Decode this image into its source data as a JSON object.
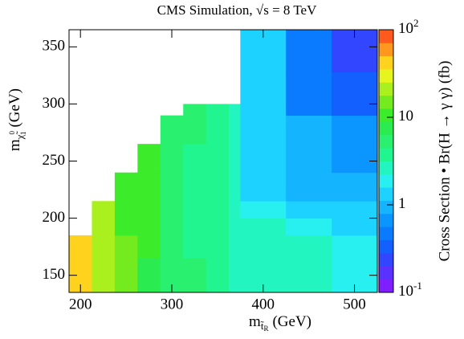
{
  "chart_data": {
    "type": "heatmap",
    "title": "CMS Simulation, √s = 8 TeV",
    "x_label": {
      "main": "m",
      "sub": "t̃",
      "subsub": "R",
      "tail": "(GeV)"
    },
    "y_label": {
      "main": "m",
      "sub": "χ̃",
      "sup": "0",
      "subsub": "1",
      "tail": "(GeV)"
    },
    "z_label": "Cross Section • Br(H → γ γ) (fb)",
    "x_edges": [
      187.5,
      212.5,
      237.5,
      262.5,
      287.5,
      312.5,
      337.5,
      362.5,
      375,
      425,
      475,
      525
    ],
    "y_edges": [
      135,
      165,
      185,
      200,
      215,
      240,
      265,
      290,
      300,
      328,
      365
    ],
    "values": [
      [
        40,
        40,
        null,
        null,
        null,
        null,
        null,
        null,
        null,
        null
      ],
      [
        20,
        20,
        20,
        20,
        null,
        null,
        null,
        null,
        null,
        null
      ],
      [
        15,
        14,
        12,
        12,
        12,
        null,
        null,
        null,
        null,
        null
      ],
      [
        8,
        9,
        9,
        9,
        9,
        9,
        null,
        null,
        null,
        null
      ],
      [
        6,
        6,
        5,
        5,
        5,
        5,
        6,
        null,
        null,
        null
      ],
      [
        4.5,
        4,
        4,
        4,
        4,
        4,
        4.5,
        4.5,
        null,
        null
      ],
      [
        3.5,
        3.5,
        3.5,
        3.5,
        3.5,
        3.5,
        3.5,
        3.5,
        null,
        null
      ],
      [
        2.5,
        2.5,
        2.5,
        2.5,
        2.5,
        2.5,
        2.5,
        2.5,
        null,
        null
      ],
      [
        3,
        3,
        2.5,
        2,
        1.5,
        1.2,
        1.2,
        1.2,
        1.2,
        1.2
      ],
      [
        2.5,
        2.5,
        2,
        1.5,
        1.1,
        0.8,
        0.8,
        0.4,
        0.4,
        0.4
      ],
      [
        2,
        2,
        1.2,
        1.2,
        0.8,
        0.7,
        0.7,
        0.3,
        0.3,
        0.22
      ]
    ],
    "xlim": [
      187.5,
      525
    ],
    "ylim": [
      135,
      365
    ],
    "zlim": [
      0.1,
      100
    ],
    "zlog": true,
    "xticks": [
      200,
      300,
      400,
      500
    ],
    "yticks": [
      150,
      200,
      250,
      300,
      350
    ],
    "zticks": [
      {
        "value": 0.1,
        "label": "10",
        "exponent": "-1"
      },
      1,
      10,
      {
        "value": 100,
        "label": "10",
        "exponent": "2"
      }
    ],
    "palette": [
      "#7f1fff",
      "#5a32ff",
      "#3246ff",
      "#1460ff",
      "#0a7aff",
      "#0b96ff",
      "#14b4ff",
      "#1ed2ff",
      "#28f0f0",
      "#22f5c0",
      "#20f590",
      "#2af070",
      "#2aeb50",
      "#3ceb2a",
      "#73eb1e",
      "#aaf01e",
      "#e6f51e",
      "#ffd21e",
      "#ff961e",
      "#ff5a1e"
    ]
  }
}
